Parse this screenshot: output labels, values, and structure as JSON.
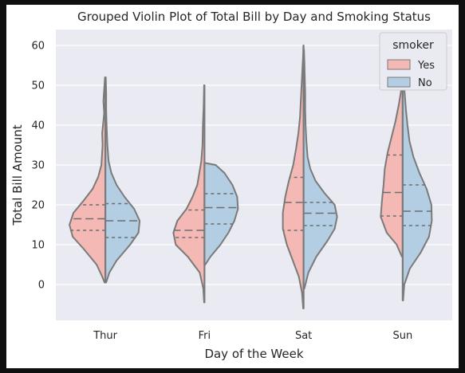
{
  "chart_data": {
    "type": "violin",
    "title": "Grouped Violin Plot of Total Bill by Day and Smoking Status",
    "xlabel": "Day of the Week",
    "ylabel": "Total Bill Amount",
    "categories": [
      "Thur",
      "Fri",
      "Sat",
      "Sun"
    ],
    "ylim": [
      -9,
      64
    ],
    "yticks": [
      0,
      10,
      20,
      30,
      40,
      50,
      60
    ],
    "grid": true,
    "split": true,
    "inner": "quartile",
    "legend": {
      "title": "smoker",
      "placement": "top-right",
      "entries": [
        "Yes",
        "No"
      ]
    },
    "series": [
      {
        "name": "Yes",
        "color": "#f4b9b5",
        "violins": [
          {
            "category": "Thur",
            "quartiles": [
              13.6,
              16.5,
              20.0
            ],
            "profile": [
              [
                0.5,
                0.02
              ],
              [
                2,
                0.08
              ],
              [
                5,
                0.22
              ],
              [
                9,
                0.55
              ],
              [
                12,
                0.82
              ],
              [
                15,
                0.9
              ],
              [
                18,
                0.8
              ],
              [
                21,
                0.55
              ],
              [
                24,
                0.32
              ],
              [
                27,
                0.18
              ],
              [
                30,
                0.1
              ],
              [
                35,
                0.07
              ],
              [
                38,
                0.08
              ],
              [
                40,
                0.06
              ],
              [
                43,
                0.03
              ],
              [
                46,
                0.05
              ],
              [
                49,
                0.03
              ],
              [
                52,
                0.01
              ]
            ]
          },
          {
            "category": "Fri",
            "quartiles": [
              11.8,
              13.6,
              18.7
            ],
            "profile": [
              [
                -4.5,
                0.01
              ],
              [
                -1,
                0.03
              ],
              [
                3,
                0.12
              ],
              [
                7,
                0.42
              ],
              [
                10,
                0.72
              ],
              [
                13,
                0.78
              ],
              [
                16,
                0.68
              ],
              [
                19,
                0.45
              ],
              [
                22,
                0.3
              ],
              [
                25,
                0.18
              ],
              [
                28,
                0.13
              ],
              [
                31,
                0.08
              ],
              [
                35,
                0.05
              ],
              [
                40,
                0.04
              ],
              [
                45,
                0.02
              ],
              [
                50,
                0.01
              ]
            ]
          },
          {
            "category": "Sat",
            "quartiles": [
              13.6,
              20.6,
              26.9
            ],
            "profile": [
              [
                -6,
                0.01
              ],
              [
                -2,
                0.04
              ],
              [
                2,
                0.12
              ],
              [
                6,
                0.27
              ],
              [
                10,
                0.42
              ],
              [
                14,
                0.52
              ],
              [
                18,
                0.52
              ],
              [
                22,
                0.46
              ],
              [
                26,
                0.37
              ],
              [
                30,
                0.26
              ],
              [
                34,
                0.19
              ],
              [
                38,
                0.13
              ],
              [
                42,
                0.09
              ],
              [
                46,
                0.07
              ],
              [
                50,
                0.05
              ],
              [
                54,
                0.03
              ],
              [
                58,
                0.01
              ],
              [
                60,
                0.005
              ]
            ]
          },
          {
            "category": "Sun",
            "quartiles": [
              17.2,
              23.1,
              32.5
            ],
            "profile": [
              [
                7,
                0.02
              ],
              [
                10,
                0.15
              ],
              [
                13,
                0.4
              ],
              [
                17,
                0.55
              ],
              [
                21,
                0.52
              ],
              [
                25,
                0.48
              ],
              [
                29,
                0.45
              ],
              [
                33,
                0.38
              ],
              [
                37,
                0.28
              ],
              [
                41,
                0.18
              ],
              [
                45,
                0.1
              ],
              [
                48,
                0.05
              ],
              [
                50,
                0.02
              ],
              [
                52,
                0.005
              ]
            ]
          }
        ]
      },
      {
        "name": "No",
        "color": "#b3cde3",
        "violins": [
          {
            "category": "Thur",
            "quartiles": [
              11.8,
              16.0,
              20.3
            ],
            "profile": [
              [
                0.5,
                0.02
              ],
              [
                3,
                0.1
              ],
              [
                6,
                0.28
              ],
              [
                10,
                0.62
              ],
              [
                13,
                0.83
              ],
              [
                16,
                0.86
              ],
              [
                19,
                0.72
              ],
              [
                22,
                0.48
              ],
              [
                25,
                0.28
              ],
              [
                28,
                0.15
              ],
              [
                31,
                0.08
              ],
              [
                35,
                0.05
              ],
              [
                40,
                0.03
              ],
              [
                44,
                0.02
              ],
              [
                48,
                0.02
              ],
              [
                52,
                0.01
              ]
            ]
          },
          {
            "category": "Fri",
            "quartiles": [
              15.2,
              19.3,
              22.8
            ],
            "profile": [
              [
                5,
                0.02
              ],
              [
                7,
                0.15
              ],
              [
                10,
                0.4
              ],
              [
                13,
                0.6
              ],
              [
                16,
                0.75
              ],
              [
                19,
                0.84
              ],
              [
                22,
                0.82
              ],
              [
                25,
                0.7
              ],
              [
                28,
                0.5
              ],
              [
                30,
                0.28
              ],
              [
                30.5,
                0.02
              ]
            ]
          },
          {
            "category": "Sat",
            "quartiles": [
              14.8,
              17.9,
              20.6
            ],
            "profile": [
              [
                -1,
                0.02
              ],
              [
                3,
                0.12
              ],
              [
                7,
                0.32
              ],
              [
                11,
                0.6
              ],
              [
                14,
                0.78
              ],
              [
                17,
                0.84
              ],
              [
                20,
                0.78
              ],
              [
                23,
                0.52
              ],
              [
                26,
                0.3
              ],
              [
                29,
                0.17
              ],
              [
                32,
                0.1
              ],
              [
                36,
                0.07
              ],
              [
                40,
                0.05
              ],
              [
                44,
                0.04
              ],
              [
                48,
                0.04
              ],
              [
                52,
                0.03
              ],
              [
                56,
                0.02
              ],
              [
                59,
                0.01
              ]
            ]
          },
          {
            "category": "Sun",
            "quartiles": [
              14.8,
              18.4,
              25.0
            ],
            "profile": [
              [
                -4,
                0.01
              ],
              [
                0,
                0.04
              ],
              [
                4,
                0.18
              ],
              [
                8,
                0.45
              ],
              [
                12,
                0.66
              ],
              [
                16,
                0.73
              ],
              [
                20,
                0.72
              ],
              [
                24,
                0.6
              ],
              [
                28,
                0.42
              ],
              [
                32,
                0.27
              ],
              [
                36,
                0.17
              ],
              [
                40,
                0.12
              ],
              [
                44,
                0.08
              ],
              [
                48,
                0.05
              ],
              [
                52,
                0.02
              ],
              [
                54,
                0.005
              ]
            ]
          }
        ]
      }
    ]
  }
}
